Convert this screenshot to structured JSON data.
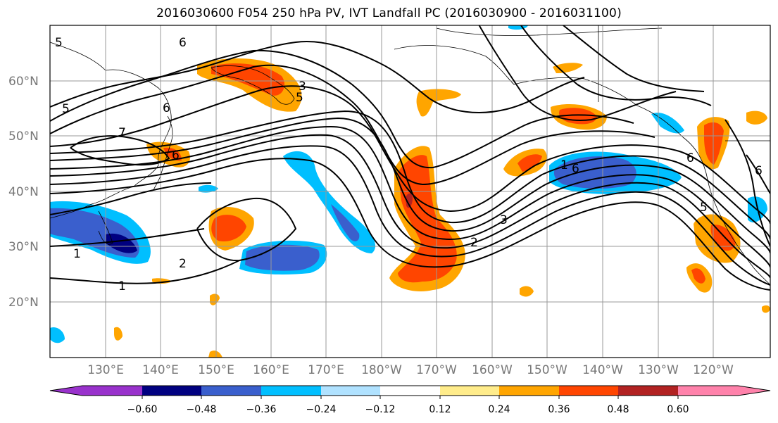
{
  "title": "2016030600 F054 250 hPa PV, IVT Landfall PC (2016030900 - 2016031100)",
  "longitude_labels": [
    "130°E",
    "140°E",
    "150°E",
    "160°E",
    "170°E",
    "180°W",
    "170°W",
    "160°W",
    "150°W",
    "140°W",
    "130°W",
    "120°W"
  ],
  "latitude_labels": [
    "60°N",
    "50°N",
    "40°N",
    "30°N",
    "20°N"
  ],
  "colorbar": {
    "tick_labels": [
      "−0.60",
      "−0.48",
      "−0.36",
      "−0.24",
      "−0.12",
      "0.12",
      "0.24",
      "0.36",
      "0.48",
      "0.60"
    ],
    "colors": [
      "#9932cc",
      "#000080",
      "#3a5fcd",
      "#00bfff",
      "#b0e2ff",
      "#ffffff",
      "#ffec8b",
      "#ffa500",
      "#ff4500",
      "#b22222",
      "#ff82ab"
    ]
  },
  "contour_labels": [
    "5",
    "6",
    "3",
    "5",
    "5",
    "6",
    "7",
    "6",
    "1",
    "2",
    "1",
    "3",
    "2",
    "1",
    "6",
    "5",
    "6",
    "6"
  ]
}
